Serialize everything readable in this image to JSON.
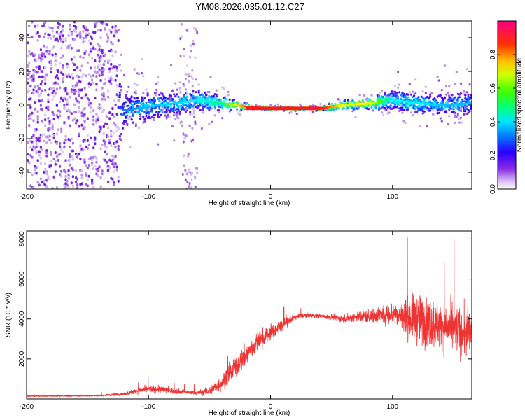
{
  "title": "YM08.2026.035.01.12.C27",
  "chart_data": [
    {
      "type": "heatmap",
      "name": "spectrogram",
      "xlabel": "Height of straight line (km)",
      "ylabel": "Frequency (Hz)",
      "xlim": [
        -200,
        165
      ],
      "ylim": [
        -50,
        50
      ],
      "xticks": [
        -200,
        -100,
        0,
        100
      ],
      "yticks": [
        -40,
        -20,
        0,
        20,
        40
      ],
      "colorbar": {
        "label": "Normalized spectral amplitude",
        "range": [
          0,
          1
        ],
        "ticks": [
          0.0,
          0.2,
          0.4,
          0.6,
          0.8
        ],
        "colors": [
          "#ffffff",
          "#c9a8f0",
          "#7a1fe0",
          "#3300ff",
          "#00a0ff",
          "#00ffff",
          "#00ff66",
          "#66ff00",
          "#ffff00",
          "#ffa000",
          "#ff2000",
          "#ff0080"
        ]
      },
      "ridge": [
        {
          "x": -200,
          "freq": 0,
          "amp": 0.2,
          "band": 45
        },
        {
          "x": -130,
          "freq": 0,
          "amp": 0.25,
          "band": 40
        },
        {
          "x": -120,
          "freq": -3,
          "amp": 0.35,
          "band": 10
        },
        {
          "x": -100,
          "freq": -1,
          "amp": 0.4,
          "band": 8
        },
        {
          "x": -80,
          "freq": 1,
          "amp": 0.42,
          "band": 7
        },
        {
          "x": -60,
          "freq": 3,
          "amp": 0.45,
          "band": 6
        },
        {
          "x": -40,
          "freq": 1,
          "amp": 0.55,
          "band": 4
        },
        {
          "x": -20,
          "freq": -1,
          "amp": 0.9,
          "band": 1.5
        },
        {
          "x": 0,
          "freq": -2,
          "amp": 0.95,
          "band": 1
        },
        {
          "x": 40,
          "freq": -2,
          "amp": 0.95,
          "band": 1
        },
        {
          "x": 60,
          "freq": 0,
          "amp": 0.7,
          "band": 3
        },
        {
          "x": 80,
          "freq": 1,
          "amp": 0.75,
          "band": 3
        },
        {
          "x": 100,
          "freq": 3,
          "amp": 0.45,
          "band": 6
        },
        {
          "x": 120,
          "freq": 1,
          "amp": 0.45,
          "band": 6
        },
        {
          "x": 140,
          "freq": 0,
          "amp": 0.4,
          "band": 6
        },
        {
          "x": 165,
          "freq": 1,
          "amp": 0.4,
          "band": 7
        }
      ]
    },
    {
      "type": "line",
      "name": "snr",
      "xlabel": "Height of straight line (km)",
      "ylabel": "SNR (10 * v/v)",
      "xlim": [
        -200,
        165
      ],
      "ylim": [
        0,
        8400
      ],
      "xticks": [
        -200,
        -100,
        0,
        100
      ],
      "yticks": [
        2000,
        4000,
        6000,
        8000
      ],
      "color": "#ee3333",
      "series": [
        {
          "name": "SNR",
          "x": [
            -200,
            -180,
            -160,
            -140,
            -120,
            -110,
            -100,
            -90,
            -80,
            -70,
            -60,
            -50,
            -40,
            -30,
            -20,
            -10,
            0,
            10,
            20,
            30,
            40,
            50,
            60,
            70,
            80,
            90,
            100,
            110,
            120,
            130,
            140,
            150,
            160,
            165
          ],
          "mean": [
            150,
            150,
            160,
            170,
            250,
            400,
            500,
            480,
            400,
            350,
            300,
            400,
            800,
            1500,
            2200,
            2900,
            3300,
            3700,
            4100,
            4200,
            4150,
            4100,
            4000,
            4100,
            4150,
            4200,
            4300,
            4100,
            4000,
            3800,
            3700,
            3500,
            3300,
            3300
          ],
          "spread": [
            60,
            60,
            60,
            70,
            150,
            250,
            300,
            300,
            250,
            200,
            200,
            400,
            700,
            900,
            1000,
            900,
            700,
            500,
            250,
            200,
            200,
            250,
            350,
            450,
            600,
            800,
            1000,
            1600,
            2200,
            2200,
            2000,
            2000,
            2200,
            2200
          ]
        }
      ]
    }
  ]
}
